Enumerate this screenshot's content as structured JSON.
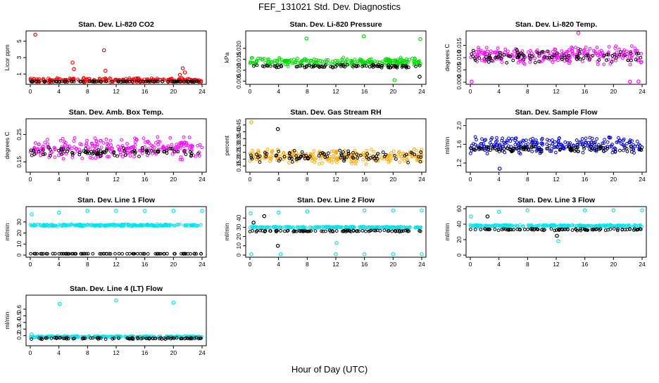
{
  "title": "FEF_131021  Std. Dev. Diagnostics",
  "xlabel": "Hour of Day (UTC)",
  "chart_data": [
    {
      "type": "scatter",
      "title": "Stan. Dev. Li-820 CO2",
      "ylabel": "Licor ppm",
      "xlim": [
        0,
        24
      ],
      "ylim": [
        0,
        6
      ],
      "xticks": [
        "0",
        "4",
        "8",
        "12",
        "16",
        "20",
        "24"
      ],
      "yticks": [
        {
          "v": 1,
          "l": "1"
        },
        {
          "v": 3,
          "l": "3"
        },
        {
          "v": 5,
          "l": "5"
        }
      ],
      "series": [
        {
          "color": "#ff0000",
          "base": 0.25,
          "spread": 0.3,
          "outliers": [
            [
              0.7,
              5.8
            ],
            [
              5.9,
              2.4
            ],
            [
              6.1,
              1.6
            ],
            [
              10.3,
              3.9
            ],
            [
              10.5,
              1.4
            ],
            [
              21.3,
              1.7
            ],
            [
              21.6,
              1.2
            ],
            [
              20.9,
              0.9
            ]
          ]
        },
        {
          "color": "#000000",
          "base": 0.08,
          "spread": 0.05,
          "outliers": []
        }
      ]
    },
    {
      "type": "scatter",
      "title": "Stan. Dev. Li-820 Pressure",
      "ylabel": "kPa",
      "xlim": [
        0,
        24
      ],
      "ylim": [
        0.0045,
        0.027
      ],
      "xticks": [
        "0",
        "4",
        "8",
        "12",
        "16",
        "20",
        "24"
      ],
      "yticks": [
        {
          "v": 0.005,
          "l": "0.005"
        },
        {
          "v": 0.01,
          "l": "0.010"
        },
        {
          "v": 0.015,
          "l": "0.015"
        },
        {
          "v": 0.02,
          "l": "0.020"
        }
      ],
      "series": [
        {
          "color": "#00dd00",
          "base": 0.0138,
          "spread": 0.0022,
          "outliers": [
            [
              7.9,
              0.0245
            ],
            [
              15.9,
              0.0255
            ],
            [
              23.8,
              0.0242
            ],
            [
              20.2,
              0.0055
            ]
          ]
        },
        {
          "color": "#000000",
          "base": 0.0118,
          "spread": 0.0008,
          "outliers": [
            [
              23.7,
              0.007
            ]
          ]
        }
      ]
    },
    {
      "type": "scatter",
      "title": "Stan. Dev. Li-820 Temp.",
      "ylabel": "degrees C",
      "xlim": [
        0,
        24
      ],
      "ylim": [
        0,
        0.02
      ],
      "xticks": [
        "0",
        "4",
        "8",
        "12",
        "16",
        "20",
        "24"
      ],
      "yticks": [
        {
          "v": 0,
          "l": "0.000"
        },
        {
          "v": 0.005,
          "l": "0.005"
        },
        {
          "v": 0.01,
          "l": "0.010"
        },
        {
          "v": 0.015,
          "l": "0.015"
        }
      ],
      "series": [
        {
          "color": "#ff00ff",
          "base": 0.011,
          "spread": 0.004,
          "outliers": [
            [
              15.1,
              0.02
            ],
            [
              0.2,
              0.0002
            ],
            [
              23.5,
              0.0003
            ],
            [
              22.3,
              0.0002
            ]
          ]
        },
        {
          "color": "#000000",
          "base": 0.0105,
          "spread": 0.003,
          "outliers": []
        }
      ]
    },
    {
      "type": "scatter",
      "title": "Stan. Dev. Amb. Box Temp.",
      "ylabel": "degrees C",
      "xlim": [
        0,
        24
      ],
      "ylim": [
        0.12,
        0.3
      ],
      "xticks": [
        "0",
        "4",
        "8",
        "12",
        "16",
        "20",
        "24"
      ],
      "yticks": [
        {
          "v": 0.15,
          "l": "0.15"
        },
        {
          "v": 0.25,
          "l": "0.25"
        }
      ],
      "series": [
        {
          "color": "#ff00ff",
          "base": 0.2,
          "spread": 0.045,
          "outliers": []
        },
        {
          "color": "#000000",
          "base": 0.185,
          "spread": 0.02,
          "outliers": []
        }
      ]
    },
    {
      "type": "scatter",
      "title": "Stan. Dev. Gas Stream RH",
      "ylabel": "percent",
      "xlim": [
        0,
        24
      ],
      "ylim": [
        0.12,
        0.48
      ],
      "xticks": [
        "0",
        "4",
        "8",
        "12",
        "16",
        "20",
        "24"
      ],
      "yticks": [
        {
          "v": 0.15,
          "l": "0.15"
        },
        {
          "v": 0.2,
          "l": "0.20"
        },
        {
          "v": 0.25,
          "l": "0.25"
        },
        {
          "v": 0.3,
          "l": "0.30"
        },
        {
          "v": 0.35,
          "l": "0.35"
        },
        {
          "v": 0.4,
          "l": "0.40"
        },
        {
          "v": 0.45,
          "l": "0.45"
        }
      ],
      "series": [
        {
          "color": "#ffaa00",
          "base": 0.22,
          "spread": 0.06,
          "outliers": [
            [
              0.2,
              0.47
            ]
          ]
        },
        {
          "color": "#000000",
          "base": 0.22,
          "spread": 0.05,
          "outliers": [
            [
              3.9,
              0.42
            ]
          ]
        }
      ]
    },
    {
      "type": "scatter",
      "title": "Stan. Dev. Sample Flow",
      "ylabel": "ml/min",
      "xlim": [
        0,
        24
      ],
      "ylim": [
        1.05,
        2.1
      ],
      "xticks": [
        "0",
        "4",
        "8",
        "12",
        "16",
        "20",
        "24"
      ],
      "yticks": [
        {
          "v": 1.2,
          "l": "1.2"
        },
        {
          "v": 1.6,
          "l": "1.6"
        },
        {
          "v": 2.0,
          "l": "2.0"
        }
      ],
      "series": [
        {
          "color": "#0000dd",
          "base": 1.58,
          "spread": 0.2,
          "outliers": [
            [
              4.1,
              1.08
            ]
          ]
        },
        {
          "color": "#000000",
          "base": 1.5,
          "spread": 0.08,
          "outliers": []
        }
      ]
    },
    {
      "type": "scatter",
      "title": "Stan. Dev. Line 1 Flow",
      "ylabel": "ml/min",
      "xlim": [
        0,
        24
      ],
      "ylim": [
        0,
        42
      ],
      "xticks": [
        "0",
        "4",
        "8",
        "12",
        "16",
        "20",
        "24"
      ],
      "yticks": [
        {
          "v": 0,
          "l": "0"
        },
        {
          "v": 10,
          "l": "10"
        },
        {
          "v": 20,
          "l": "20"
        },
        {
          "v": 30,
          "l": "30"
        }
      ],
      "series": [
        {
          "color": "#00e5ee",
          "base": 27,
          "spread": 1.2,
          "outliers": [
            [
              0.2,
              37
            ],
            [
              4.0,
              38.5
            ],
            [
              8.0,
              40
            ],
            [
              12.0,
              40
            ],
            [
              16.0,
              40
            ],
            [
              20.0,
              40
            ],
            [
              24.0,
              40
            ]
          ]
        },
        {
          "color": "#000000",
          "base": 1.2,
          "spread": 0.1,
          "outliers": []
        }
      ]
    },
    {
      "type": "scatter",
      "title": "Stan. Dev. Line 2 Flow",
      "ylabel": "ml/min",
      "xlim": [
        0,
        24
      ],
      "ylim": [
        0,
        50
      ],
      "xticks": [
        "0",
        "4",
        "8",
        "12",
        "16",
        "20",
        "24"
      ],
      "yticks": [
        {
          "v": 0,
          "l": "0"
        },
        {
          "v": 10,
          "l": "10"
        },
        {
          "v": 20,
          "l": "20"
        },
        {
          "v": 30,
          "l": "30"
        },
        {
          "v": 40,
          "l": "40"
        }
      ],
      "series": [
        {
          "color": "#00e5ee",
          "base": 30,
          "spread": 1.0,
          "outliers": [
            [
              0.1,
              45
            ],
            [
              4.0,
              46
            ],
            [
              12.1,
              13
            ],
            [
              12.2,
              30
            ],
            [
              24.0,
              48
            ],
            [
              16.0,
              48
            ],
            [
              20.0,
              48
            ],
            [
              8.0,
              47
            ],
            [
              0.2,
              1
            ],
            [
              4.3,
              1
            ],
            [
              12.0,
              1
            ],
            [
              16.0,
              1
            ],
            [
              20.0,
              1
            ],
            [
              24.0,
              1
            ]
          ]
        },
        {
          "color": "#000000",
          "base": 26,
          "spread": 1.0,
          "outliers": [
            [
              3.9,
              10
            ],
            [
              2.0,
              42
            ],
            [
              0.5,
              35
            ]
          ]
        }
      ]
    },
    {
      "type": "scatter",
      "title": "Stan. Dev. Line 3 Flow",
      "ylabel": "ml/min",
      "xlim": [
        0,
        24
      ],
      "ylim": [
        0,
        60
      ],
      "xticks": [
        "0",
        "4",
        "8",
        "12",
        "16",
        "20",
        "24"
      ],
      "yticks": [
        {
          "v": 0,
          "l": "0"
        },
        {
          "v": 20,
          "l": "20"
        },
        {
          "v": 40,
          "l": "40"
        },
        {
          "v": 60,
          "l": "60"
        }
      ],
      "series": [
        {
          "color": "#00e5ee",
          "base": 38,
          "spread": 1.5,
          "outliers": [
            [
              0.1,
              50
            ],
            [
              4.0,
              56
            ],
            [
              8.0,
              58
            ],
            [
              12.3,
              18
            ],
            [
              16.0,
              58
            ],
            [
              20.0,
              58
            ],
            [
              24.0,
              58
            ]
          ]
        },
        {
          "color": "#000000",
          "base": 33,
          "spread": 1.5,
          "outliers": [
            [
              12.1,
              25
            ],
            [
              2.4,
              50
            ]
          ]
        }
      ]
    },
    {
      "type": "scatter",
      "title": "Stan. Dev. Line 4 (LT) Flow",
      "ylabel": "ml/min",
      "xlim": [
        0,
        24
      ],
      "ylim": [
        0.08,
        0.78
      ],
      "xticks": [
        "0",
        "4",
        "8",
        "12",
        "16",
        "20",
        "24"
      ],
      "yticks": [
        {
          "v": 0.2,
          "l": "0.2"
        },
        {
          "v": 0.3,
          "l": "0.3"
        },
        {
          "v": 0.4,
          "l": "0.4"
        },
        {
          "v": 0.5,
          "l": "0.5"
        },
        {
          "v": 0.6,
          "l": "0.6"
        }
      ],
      "series": [
        {
          "color": "#00e5ee",
          "base": 0.185,
          "spread": 0.012,
          "outliers": [
            [
              4.1,
              0.68
            ],
            [
              12.0,
              0.73
            ],
            [
              20.0,
              0.7
            ],
            [
              0.2,
              0.22
            ]
          ]
        },
        {
          "color": "#000000",
          "base": 0.16,
          "spread": 0.015,
          "outliers": []
        }
      ]
    }
  ]
}
